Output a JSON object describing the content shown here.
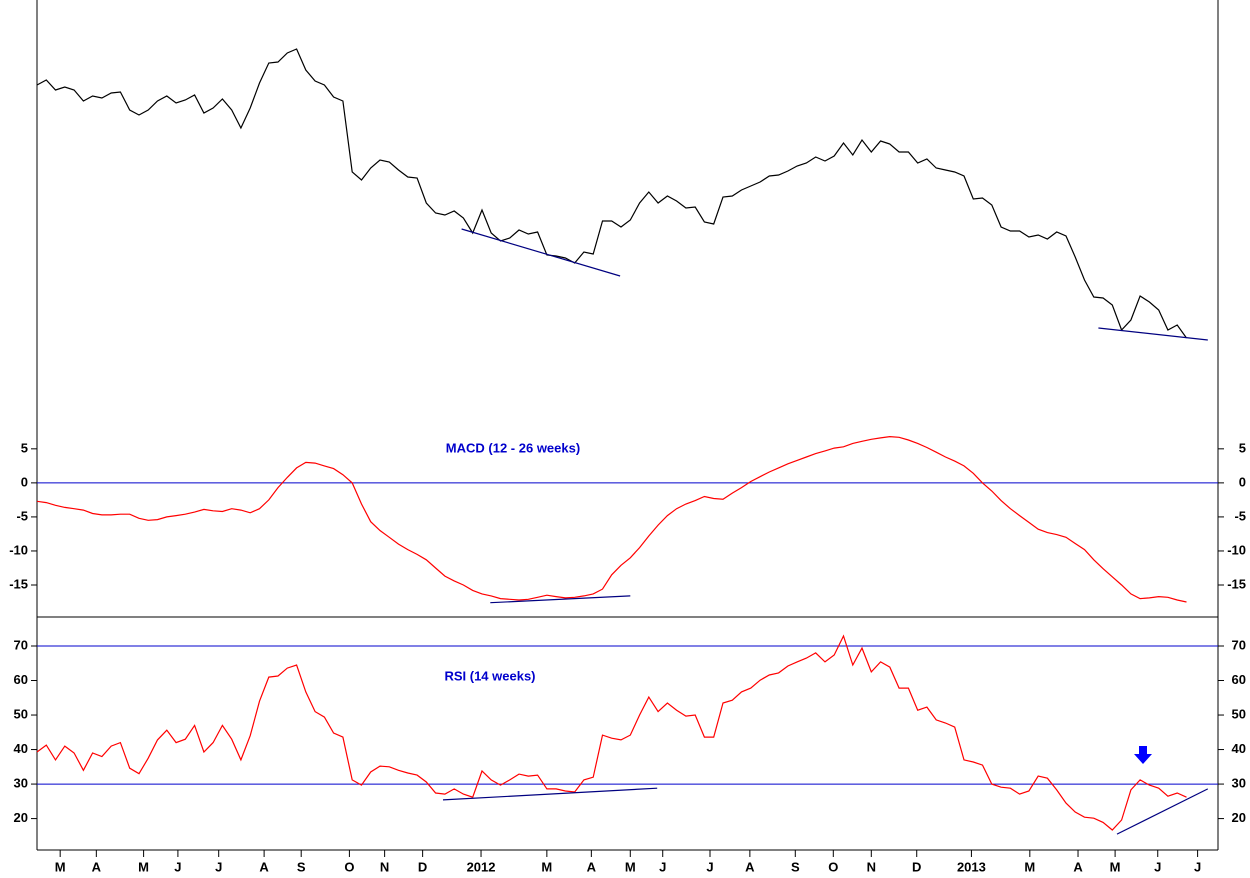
{
  "chart_data": [
    {
      "type": "line",
      "xlim": [
        0,
        127.4
      ],
      "ylim": [
        0,
        425
      ],
      "series": [
        {
          "color": "#000000",
          "values": [
            340,
            345,
            335,
            338,
            335,
            324,
            329,
            327,
            332,
            333,
            315,
            310,
            315,
            324,
            329,
            322,
            325,
            330,
            312,
            317,
            326,
            315,
            297,
            317,
            342,
            362,
            363,
            372,
            376,
            355,
            344,
            340,
            328,
            324,
            253,
            245,
            257,
            265,
            263,
            255,
            248,
            247,
            222,
            212,
            210,
            214,
            207,
            192,
            215,
            192,
            184,
            187,
            195,
            191,
            193,
            170,
            169,
            167,
            162,
            173,
            171,
            204,
            204,
            198,
            205,
            222,
            233,
            222,
            229,
            224,
            217,
            218,
            203,
            201,
            228,
            229,
            235,
            239,
            243,
            249,
            250,
            254,
            259,
            262,
            268,
            264,
            269,
            282,
            270,
            285,
            273,
            284,
            281,
            273,
            273,
            262,
            266,
            257,
            255,
            253,
            249,
            226,
            227,
            220,
            198,
            194,
            194,
            188,
            190,
            186,
            193,
            189,
            168,
            145,
            128,
            127,
            120,
            95,
            105,
            129,
            123,
            115,
            95,
            100,
            87
          ]
        }
      ],
      "trendlines": [
        {
          "color": "#000080",
          "x": [
            45.8,
            62.9
          ],
          "values": [
            196,
            149
          ]
        },
        {
          "color": "#000080",
          "x": [
            114.5,
            126.3
          ],
          "values": [
            97,
            85
          ]
        }
      ]
    },
    {
      "type": "line",
      "title": "MACD (12 - 26 weeks)",
      "xlim": [
        0,
        127.4
      ],
      "ylim": [
        -19.7,
        8.5
      ],
      "yticks": [
        5,
        0,
        -5,
        -10,
        -15
      ],
      "hlines": [
        0
      ],
      "hline_color": "#0000cc",
      "series": [
        {
          "color": "#ff0000",
          "values": [
            -2.7,
            -2.9,
            -3.3,
            -3.6,
            -3.8,
            -4.0,
            -4.5,
            -4.7,
            -4.7,
            -4.6,
            -4.6,
            -5.2,
            -5.5,
            -5.4,
            -5.0,
            -4.8,
            -4.6,
            -4.3,
            -3.9,
            -4.1,
            -4.2,
            -3.8,
            -4.0,
            -4.4,
            -3.8,
            -2.5,
            -0.7,
            0.8,
            2.2,
            3.0,
            2.9,
            2.5,
            2.1,
            1.2,
            0.0,
            -3.1,
            -5.7,
            -7.0,
            -8.0,
            -9.0,
            -9.8,
            -10.5,
            -11.3,
            -12.5,
            -13.7,
            -14.4,
            -15.0,
            -15.8,
            -16.3,
            -16.6,
            -17.0,
            -17.1,
            -17.2,
            -17.1,
            -16.8,
            -16.5,
            -16.7,
            -16.9,
            -16.8,
            -16.6,
            -16.3,
            -15.6,
            -13.5,
            -12.1,
            -11.0,
            -9.5,
            -7.8,
            -6.2,
            -4.8,
            -3.8,
            -3.1,
            -2.6,
            -2.0,
            -2.3,
            -2.4,
            -1.5,
            -0.7,
            0.2,
            0.9,
            1.6,
            2.2,
            2.8,
            3.3,
            3.8,
            4.3,
            4.7,
            5.1,
            5.3,
            5.8,
            6.1,
            6.4,
            6.6,
            6.8,
            6.7,
            6.3,
            5.8,
            5.2,
            4.5,
            3.8,
            3.2,
            2.5,
            1.4,
            0.0,
            -1.2,
            -2.6,
            -3.8,
            -4.8,
            -5.8,
            -6.8,
            -7.3,
            -7.6,
            -8.0,
            -8.9,
            -9.8,
            -11.3,
            -12.6,
            -13.8,
            -15.0,
            -16.3,
            -17.0,
            -16.9,
            -16.7,
            -16.8,
            -17.2,
            -17.5
          ]
        }
      ],
      "trendlines": [
        {
          "color": "#000080",
          "x": [
            48.9,
            64.0
          ],
          "values": [
            -17.6,
            -16.6
          ]
        }
      ]
    },
    {
      "type": "line",
      "title": "RSI (14 weeks)",
      "xlim": [
        0,
        127.4
      ],
      "ylim": [
        10.9,
        78.4
      ],
      "yticks": [
        70,
        60,
        50,
        40,
        30,
        20
      ],
      "hlines": [
        30,
        70
      ],
      "hline_color": "#0000cc",
      "xticks": [
        {
          "value": 2.5,
          "label": "M"
        },
        {
          "value": 6.4,
          "label": "A"
        },
        {
          "value": 11.5,
          "label": "M"
        },
        {
          "value": 15.2,
          "label": "J"
        },
        {
          "value": 19.6,
          "label": "J"
        },
        {
          "value": 24.5,
          "label": "A"
        },
        {
          "value": 28.5,
          "label": "S"
        },
        {
          "value": 33.7,
          "label": "O"
        },
        {
          "value": 37.5,
          "label": "N"
        },
        {
          "value": 41.6,
          "label": "D"
        },
        {
          "value": 47.9,
          "label": "2012"
        },
        {
          "value": 55.0,
          "label": "M"
        },
        {
          "value": 59.8,
          "label": "A"
        },
        {
          "value": 64.0,
          "label": "M"
        },
        {
          "value": 67.5,
          "label": "J"
        },
        {
          "value": 72.6,
          "label": "J"
        },
        {
          "value": 76.9,
          "label": "A"
        },
        {
          "value": 81.8,
          "label": "S"
        },
        {
          "value": 85.9,
          "label": "O"
        },
        {
          "value": 90.0,
          "label": "N"
        },
        {
          "value": 94.9,
          "label": "D"
        },
        {
          "value": 100.8,
          "label": "2013"
        },
        {
          "value": 107.1,
          "label": "M"
        },
        {
          "value": 112.3,
          "label": "A"
        },
        {
          "value": 116.3,
          "label": "M"
        },
        {
          "value": 120.9,
          "label": "J"
        },
        {
          "value": 125.2,
          "label": "J"
        }
      ],
      "series": [
        {
          "color": "#ff0000",
          "values": [
            39.3,
            41.3,
            37,
            41,
            39,
            34,
            39,
            38,
            41,
            42,
            34.6,
            33,
            37.5,
            42.8,
            45.6,
            42,
            43,
            47,
            39.3,
            42,
            47,
            43,
            37,
            44,
            54,
            61,
            61.3,
            63.6,
            64.5,
            56.7,
            51,
            49.4,
            44.8,
            43.6,
            31.2,
            29.7,
            33.5,
            35.2,
            35,
            34,
            33.2,
            32.6,
            30.6,
            27.4,
            27.1,
            28.6,
            27.1,
            26.2,
            33.8,
            31.2,
            29.7,
            31.2,
            32.9,
            32.3,
            32.6,
            28.6,
            28.6,
            28,
            27.7,
            31.2,
            32,
            44.2,
            43.3,
            42.8,
            44.2,
            50,
            55.2,
            51,
            53.5,
            51.4,
            49.7,
            50,
            43.6,
            43.6,
            53.5,
            54.3,
            56.7,
            57.8,
            60.1,
            61.6,
            62.2,
            64.2,
            65.4,
            66.5,
            68,
            65.4,
            67.4,
            72.9,
            64.5,
            69.4,
            62.5,
            65.4,
            63.9,
            57.8,
            57.8,
            51.4,
            52.3,
            48.6,
            47.7,
            46.5,
            37,
            36.4,
            35.5,
            30,
            29.1,
            28.8,
            27.1,
            28,
            32.3,
            31.7,
            28.3,
            24.5,
            21.9,
            20.4,
            20.1,
            18.9,
            16.7,
            19.6,
            28.3,
            31.2,
            29.7,
            28.8,
            26.5,
            27.4,
            26.2
          ]
        }
      ],
      "trendlines": [
        {
          "color": "#000080",
          "x": [
            43.8,
            66.9
          ],
          "values": [
            25.4,
            28.8
          ]
        },
        {
          "color": "#000080",
          "x": [
            116.5,
            126.3
          ],
          "values": [
            15.5,
            28.6
          ]
        }
      ]
    }
  ]
}
